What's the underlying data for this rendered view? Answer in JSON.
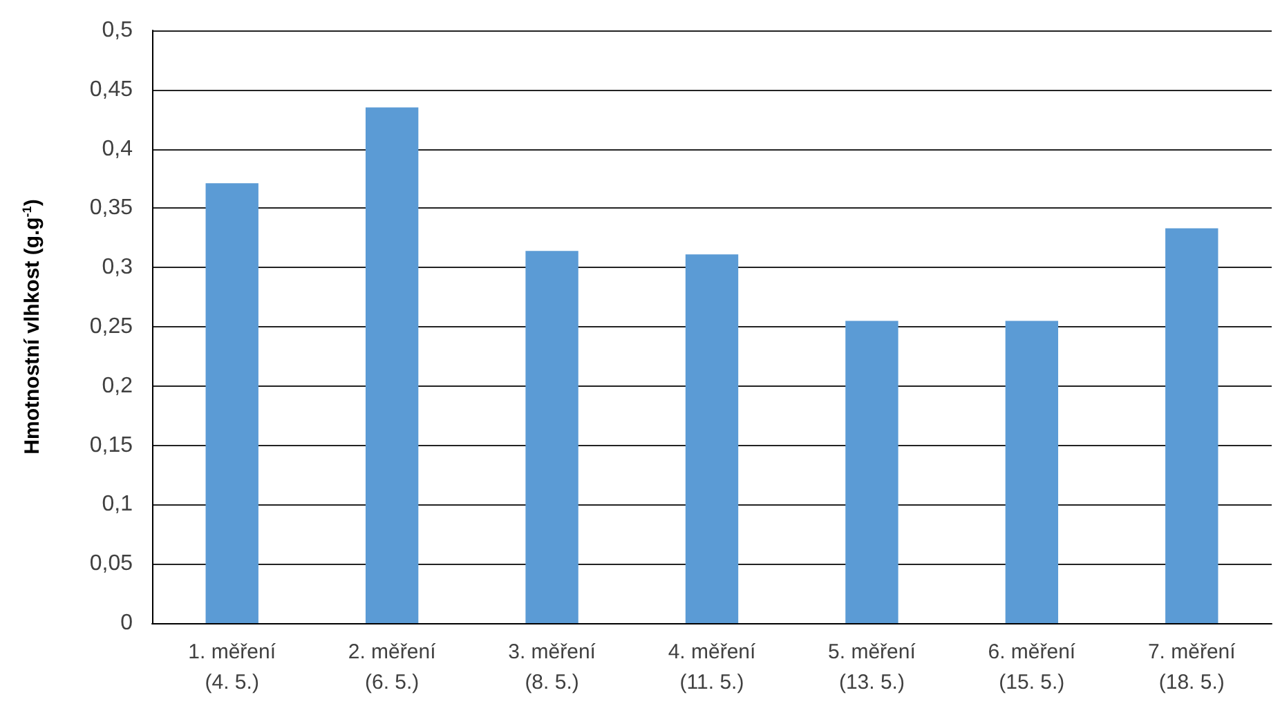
{
  "chart_data": {
    "type": "bar",
    "ylabel": "Hmotnostní vlhkost (g.g$^{-1}$)",
    "categories": [
      "1. měření\n(4. 5.)",
      "2. měření\n(6. 5.)",
      "3. měření\n(8. 5.)",
      "4. měření\n(11. 5.)",
      "5. měření\n(13. 5.)",
      "6. měření\n(15. 5.)",
      "7. měření\n(18. 5.)"
    ],
    "values": [
      0.371,
      0.435,
      0.314,
      0.311,
      0.255,
      0.255,
      0.333
    ],
    "color": "#5b9bd5",
    "ylim": [
      0,
      0.5
    ],
    "yticks": [
      {
        "value": 0,
        "label": "0"
      },
      {
        "value": 0.05,
        "label": "0,05"
      },
      {
        "value": 0.1,
        "label": "0,1"
      },
      {
        "value": 0.15,
        "label": "0,15"
      },
      {
        "value": 0.2,
        "label": "0,2"
      },
      {
        "value": 0.25,
        "label": "0,25"
      },
      {
        "value": 0.3,
        "label": "0,3"
      },
      {
        "value": 0.35,
        "label": "0,35"
      },
      {
        "value": 0.4,
        "label": "0,4"
      },
      {
        "value": 0.45,
        "label": "0,45"
      },
      {
        "value": 0.5,
        "label": "0,5"
      }
    ],
    "grid": "y"
  }
}
